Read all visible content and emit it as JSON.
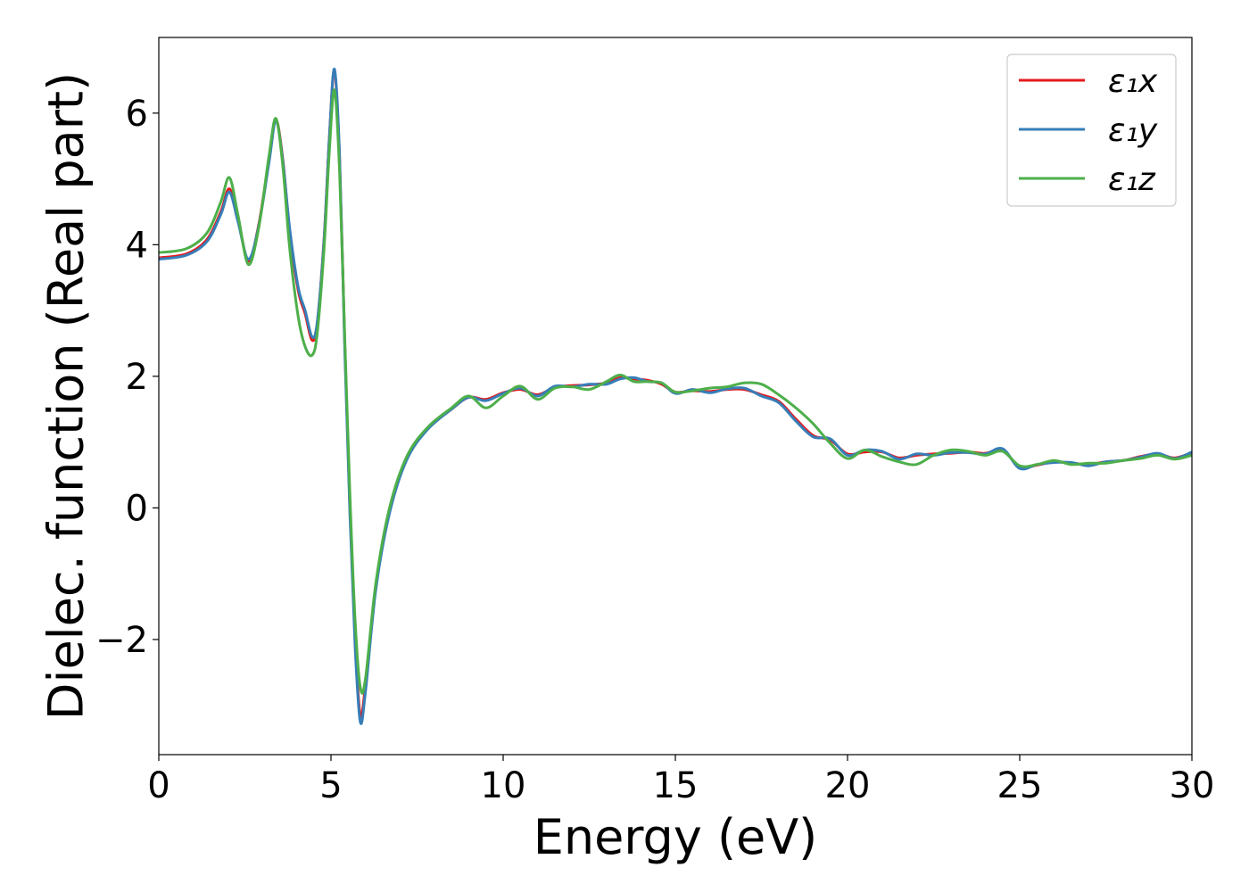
{
  "chart_data": {
    "type": "line",
    "xlabel": "Energy (eV)",
    "ylabel": "Dielec. function (Real part)",
    "xlim": [
      0,
      30
    ],
    "ylim": [
      -3.75,
      7.15
    ],
    "xticks": [
      0,
      5,
      10,
      15,
      20,
      25,
      30
    ],
    "xtick_labels": [
      "0",
      "5",
      "10",
      "15",
      "20",
      "25",
      "30"
    ],
    "yticks": [
      -2,
      0,
      2,
      4,
      6
    ],
    "ytick_labels": [
      "−2",
      "0",
      "2",
      "4",
      "6"
    ],
    "grid": false,
    "legend_position": "top-right",
    "series": [
      {
        "name": "ε₁x",
        "color": "#e41a1c",
        "points": [
          [
            0,
            3.8
          ],
          [
            0.8,
            3.86
          ],
          [
            1.4,
            4.08
          ],
          [
            1.8,
            4.5
          ],
          [
            2.05,
            4.85
          ],
          [
            2.3,
            4.4
          ],
          [
            2.6,
            3.75
          ],
          [
            2.9,
            4.3
          ],
          [
            3.2,
            5.3
          ],
          [
            3.4,
            5.9
          ],
          [
            3.6,
            5.3
          ],
          [
            3.8,
            4.2
          ],
          [
            4.05,
            3.3
          ],
          [
            4.25,
            2.95
          ],
          [
            4.45,
            2.55
          ],
          [
            4.6,
            2.8
          ],
          [
            4.8,
            4.1
          ],
          [
            4.95,
            5.6
          ],
          [
            5.1,
            6.65
          ],
          [
            5.25,
            5.3
          ],
          [
            5.4,
            2.5
          ],
          [
            5.55,
            0.0
          ],
          [
            5.7,
            -2.0
          ],
          [
            5.85,
            -3.15
          ],
          [
            6.0,
            -2.7
          ],
          [
            6.3,
            -1.2
          ],
          [
            6.7,
            -0.05
          ],
          [
            7.2,
            0.75
          ],
          [
            7.8,
            1.2
          ],
          [
            8.5,
            1.5
          ],
          [
            9.0,
            1.68
          ],
          [
            9.5,
            1.65
          ],
          [
            10.0,
            1.75
          ],
          [
            10.5,
            1.8
          ],
          [
            11.0,
            1.72
          ],
          [
            11.5,
            1.83
          ],
          [
            12.0,
            1.86
          ],
          [
            12.5,
            1.87
          ],
          [
            13.0,
            1.9
          ],
          [
            13.4,
            1.98
          ],
          [
            13.8,
            1.96
          ],
          [
            14.2,
            1.94
          ],
          [
            14.6,
            1.88
          ],
          [
            15.0,
            1.76
          ],
          [
            15.5,
            1.78
          ],
          [
            16.0,
            1.77
          ],
          [
            16.5,
            1.8
          ],
          [
            17.0,
            1.8
          ],
          [
            17.5,
            1.72
          ],
          [
            18.0,
            1.62
          ],
          [
            18.5,
            1.35
          ],
          [
            19.0,
            1.1
          ],
          [
            19.5,
            1.03
          ],
          [
            20.0,
            0.82
          ],
          [
            20.5,
            0.85
          ],
          [
            21.0,
            0.85
          ],
          [
            21.5,
            0.76
          ],
          [
            22.0,
            0.8
          ],
          [
            22.5,
            0.82
          ],
          [
            23.0,
            0.83
          ],
          [
            23.5,
            0.85
          ],
          [
            24.0,
            0.83
          ],
          [
            24.5,
            0.88
          ],
          [
            25.0,
            0.62
          ],
          [
            25.5,
            0.65
          ],
          [
            26.0,
            0.7
          ],
          [
            26.5,
            0.68
          ],
          [
            27.0,
            0.66
          ],
          [
            27.5,
            0.7
          ],
          [
            28.0,
            0.72
          ],
          [
            28.5,
            0.78
          ],
          [
            29.0,
            0.82
          ],
          [
            29.5,
            0.76
          ],
          [
            30.0,
            0.84
          ]
        ]
      },
      {
        "name": "ε₁y",
        "color": "#377eb8",
        "points": [
          [
            0,
            3.78
          ],
          [
            0.8,
            3.84
          ],
          [
            1.4,
            4.05
          ],
          [
            1.8,
            4.46
          ],
          [
            2.05,
            4.8
          ],
          [
            2.3,
            4.35
          ],
          [
            2.6,
            3.78
          ],
          [
            2.9,
            4.28
          ],
          [
            3.2,
            5.25
          ],
          [
            3.4,
            5.88
          ],
          [
            3.6,
            5.28
          ],
          [
            3.8,
            4.25
          ],
          [
            4.05,
            3.35
          ],
          [
            4.25,
            3.0
          ],
          [
            4.45,
            2.6
          ],
          [
            4.6,
            2.82
          ],
          [
            4.8,
            4.08
          ],
          [
            4.95,
            5.6
          ],
          [
            5.1,
            6.67
          ],
          [
            5.25,
            5.35
          ],
          [
            5.4,
            2.4
          ],
          [
            5.55,
            -0.1
          ],
          [
            5.7,
            -2.1
          ],
          [
            5.85,
            -3.25
          ],
          [
            6.0,
            -2.8
          ],
          [
            6.3,
            -1.25
          ],
          [
            6.7,
            -0.08
          ],
          [
            7.2,
            0.73
          ],
          [
            7.8,
            1.19
          ],
          [
            8.5,
            1.5
          ],
          [
            9.0,
            1.68
          ],
          [
            9.5,
            1.63
          ],
          [
            10.0,
            1.74
          ],
          [
            10.5,
            1.82
          ],
          [
            11.0,
            1.7
          ],
          [
            11.5,
            1.85
          ],
          [
            12.0,
            1.84
          ],
          [
            12.5,
            1.88
          ],
          [
            13.0,
            1.88
          ],
          [
            13.4,
            1.96
          ],
          [
            13.8,
            1.98
          ],
          [
            14.2,
            1.92
          ],
          [
            14.6,
            1.9
          ],
          [
            15.0,
            1.74
          ],
          [
            15.5,
            1.8
          ],
          [
            16.0,
            1.75
          ],
          [
            16.5,
            1.81
          ],
          [
            17.0,
            1.82
          ],
          [
            17.5,
            1.7
          ],
          [
            18.0,
            1.6
          ],
          [
            18.5,
            1.32
          ],
          [
            19.0,
            1.08
          ],
          [
            19.5,
            1.05
          ],
          [
            20.0,
            0.8
          ],
          [
            20.5,
            0.88
          ],
          [
            21.0,
            0.86
          ],
          [
            21.5,
            0.74
          ],
          [
            22.0,
            0.82
          ],
          [
            22.5,
            0.8
          ],
          [
            23.0,
            0.84
          ],
          [
            23.5,
            0.84
          ],
          [
            24.0,
            0.82
          ],
          [
            24.5,
            0.9
          ],
          [
            25.0,
            0.6
          ],
          [
            25.5,
            0.66
          ],
          [
            26.0,
            0.69
          ],
          [
            26.5,
            0.69
          ],
          [
            27.0,
            0.64
          ],
          [
            27.5,
            0.7
          ],
          [
            28.0,
            0.72
          ],
          [
            28.5,
            0.77
          ],
          [
            29.0,
            0.83
          ],
          [
            29.5,
            0.75
          ],
          [
            30.0,
            0.85
          ]
        ]
      },
      {
        "name": "ε₁z",
        "color": "#4daf4a",
        "points": [
          [
            0,
            3.88
          ],
          [
            0.8,
            3.94
          ],
          [
            1.4,
            4.18
          ],
          [
            1.8,
            4.65
          ],
          [
            2.05,
            5.02
          ],
          [
            2.3,
            4.45
          ],
          [
            2.6,
            3.7
          ],
          [
            2.9,
            4.25
          ],
          [
            3.2,
            5.35
          ],
          [
            3.4,
            5.92
          ],
          [
            3.6,
            5.2
          ],
          [
            3.8,
            3.95
          ],
          [
            4.05,
            2.9
          ],
          [
            4.25,
            2.45
          ],
          [
            4.45,
            2.32
          ],
          [
            4.6,
            2.65
          ],
          [
            4.8,
            3.95
          ],
          [
            4.95,
            5.4
          ],
          [
            5.1,
            6.35
          ],
          [
            5.25,
            5.1
          ],
          [
            5.4,
            2.6
          ],
          [
            5.55,
            0.2
          ],
          [
            5.7,
            -1.7
          ],
          [
            5.85,
            -2.72
          ],
          [
            6.0,
            -2.6
          ],
          [
            6.3,
            -1.15
          ],
          [
            6.7,
            0.0
          ],
          [
            7.2,
            0.78
          ],
          [
            7.8,
            1.22
          ],
          [
            8.5,
            1.52
          ],
          [
            9.0,
            1.7
          ],
          [
            9.5,
            1.52
          ],
          [
            10.0,
            1.7
          ],
          [
            10.5,
            1.85
          ],
          [
            11.0,
            1.65
          ],
          [
            11.5,
            1.82
          ],
          [
            12.0,
            1.84
          ],
          [
            12.5,
            1.8
          ],
          [
            13.0,
            1.92
          ],
          [
            13.4,
            2.02
          ],
          [
            13.8,
            1.92
          ],
          [
            14.2,
            1.92
          ],
          [
            14.6,
            1.9
          ],
          [
            15.0,
            1.76
          ],
          [
            15.5,
            1.78
          ],
          [
            16.0,
            1.82
          ],
          [
            16.5,
            1.84
          ],
          [
            17.0,
            1.9
          ],
          [
            17.5,
            1.88
          ],
          [
            18.0,
            1.72
          ],
          [
            18.5,
            1.52
          ],
          [
            19.0,
            1.28
          ],
          [
            19.5,
            0.98
          ],
          [
            20.0,
            0.75
          ],
          [
            20.5,
            0.88
          ],
          [
            21.0,
            0.78
          ],
          [
            21.5,
            0.7
          ],
          [
            22.0,
            0.66
          ],
          [
            22.5,
            0.8
          ],
          [
            23.0,
            0.88
          ],
          [
            23.5,
            0.86
          ],
          [
            24.0,
            0.8
          ],
          [
            24.5,
            0.86
          ],
          [
            25.0,
            0.64
          ],
          [
            25.5,
            0.66
          ],
          [
            26.0,
            0.72
          ],
          [
            26.5,
            0.66
          ],
          [
            27.0,
            0.68
          ],
          [
            27.5,
            0.68
          ],
          [
            28.0,
            0.72
          ],
          [
            28.5,
            0.75
          ],
          [
            29.0,
            0.8
          ],
          [
            29.5,
            0.74
          ],
          [
            30.0,
            0.8
          ]
        ]
      }
    ]
  }
}
